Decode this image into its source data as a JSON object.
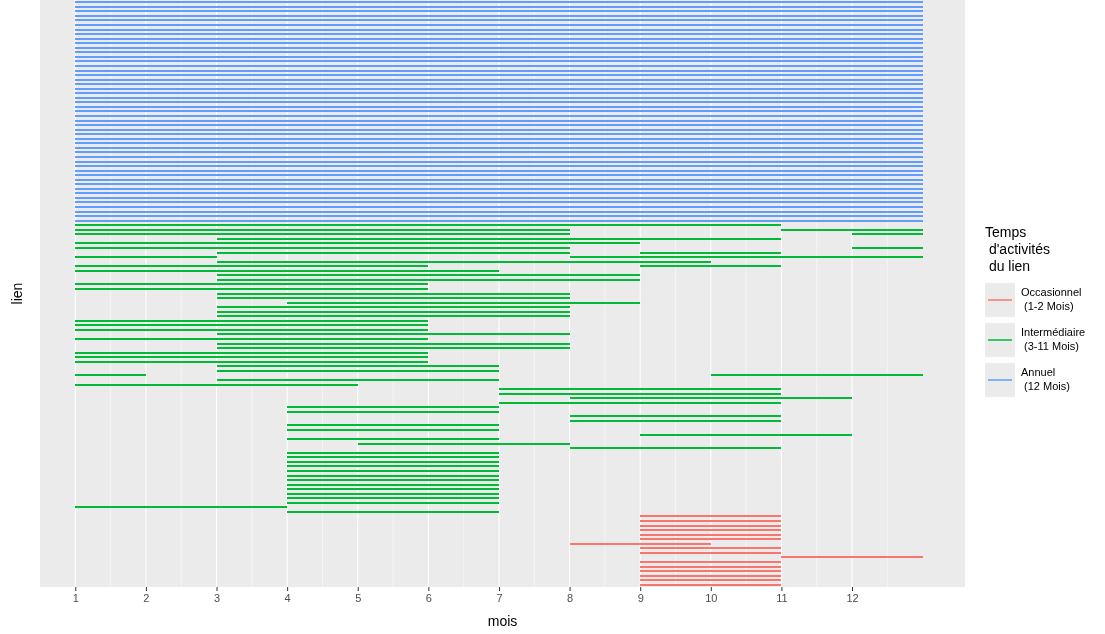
{
  "chart_data": {
    "type": "bar",
    "orientation": "horizontal",
    "xlabel": "mois",
    "ylabel": "lien",
    "legend_title": "Temps\n d'activités\n du lien",
    "legend": "right",
    "grid": "x",
    "tick_labels": "x",
    "xlim": [
      0.5,
      13.6
    ],
    "xticks": [
      1,
      2,
      3,
      4,
      5,
      6,
      7,
      8,
      9,
      10,
      11,
      12
    ],
    "categories": [
      null,
      null,
      null,
      null,
      null,
      null,
      null,
      null,
      null,
      null,
      null,
      null,
      null,
      null,
      null,
      null,
      null,
      null,
      null,
      null,
      null,
      null,
      null,
      null,
      null,
      null,
      null,
      null,
      null,
      null,
      null,
      null,
      null,
      null,
      null,
      null,
      null,
      null,
      null,
      null,
      null,
      null,
      null,
      null,
      null,
      null,
      null,
      null,
      null,
      null,
      null,
      null,
      null,
      null,
      null,
      null,
      null,
      null,
      null,
      null,
      null,
      null,
      null,
      null,
      null,
      null,
      null,
      null,
      null,
      null,
      null,
      null,
      null,
      null,
      null,
      null,
      null,
      null,
      null,
      null,
      null,
      null,
      null,
      null,
      null,
      null,
      null,
      null,
      null,
      null,
      null,
      null,
      null,
      null,
      null,
      null,
      null,
      null,
      null,
      null,
      null,
      null,
      null,
      null,
      null,
      null,
      null,
      null,
      null,
      null,
      null,
      null,
      null,
      null,
      null,
      null,
      null,
      null,
      null,
      null,
      null,
      null,
      null,
      null,
      null,
      null,
      null,
      null,
      null
    ],
    "series": [
      {
        "name": "Occasionnel\n (1-2 Mois)",
        "color": "#f8766d",
        "values": [
          null,
          null,
          null,
          null,
          null,
          null,
          null,
          null,
          null,
          null,
          null,
          null,
          null,
          null,
          null,
          null,
          null,
          null,
          null,
          null,
          null,
          null,
          null,
          null,
          null,
          null,
          null,
          null,
          null,
          null,
          null,
          null,
          null,
          null,
          null,
          null,
          null,
          null,
          null,
          null,
          null,
          null,
          null,
          null,
          null,
          null,
          null,
          null,
          null,
          null,
          null,
          null,
          null,
          null,
          null,
          null,
          null,
          null,
          null,
          null,
          null,
          null,
          null,
          null,
          null,
          null,
          null,
          null,
          null,
          null,
          null,
          null,
          null,
          null,
          null,
          null,
          null,
          null,
          null,
          null,
          null,
          null,
          null,
          null,
          null,
          null,
          null,
          null,
          null,
          null,
          null,
          null,
          null,
          null,
          null,
          null,
          null,
          null,
          null,
          null,
          null,
          null,
          null,
          null,
          null,
          null,
          null,
          null,
          null,
          null,
          null,
          null,
          null,
          2,
          2,
          2,
          2,
          2,
          2,
          2,
          2,
          2,
          2,
          2,
          2,
          2,
          2,
          2,
          2
        ],
        "base": [
          null,
          null,
          null,
          null,
          null,
          null,
          null,
          null,
          null,
          null,
          null,
          null,
          null,
          null,
          null,
          null,
          null,
          null,
          null,
          null,
          null,
          null,
          null,
          null,
          null,
          null,
          null,
          null,
          null,
          null,
          null,
          null,
          null,
          null,
          null,
          null,
          null,
          null,
          null,
          null,
          null,
          null,
          null,
          null,
          null,
          null,
          null,
          null,
          null,
          null,
          null,
          null,
          null,
          null,
          null,
          null,
          null,
          null,
          null,
          null,
          null,
          null,
          null,
          null,
          null,
          null,
          null,
          null,
          null,
          null,
          null,
          null,
          null,
          null,
          null,
          null,
          null,
          null,
          null,
          null,
          null,
          null,
          null,
          null,
          null,
          null,
          null,
          null,
          null,
          null,
          null,
          null,
          null,
          null,
          null,
          null,
          null,
          null,
          null,
          null,
          null,
          null,
          null,
          null,
          null,
          null,
          null,
          null,
          null,
          null,
          null,
          null,
          null,
          9,
          9,
          9,
          9,
          9,
          9,
          8,
          9,
          9,
          11,
          9,
          9,
          9,
          9,
          9,
          9
        ]
      },
      {
        "name": "Intermédiaire\n (3-11 Mois)",
        "color": "#00ba38",
        "values": [
          null,
          null,
          null,
          null,
          null,
          null,
          null,
          null,
          null,
          null,
          null,
          null,
          null,
          null,
          null,
          null,
          null,
          null,
          null,
          null,
          null,
          null,
          null,
          null,
          null,
          null,
          null,
          null,
          null,
          null,
          null,
          null,
          null,
          null,
          null,
          null,
          null,
          null,
          null,
          null,
          null,
          null,
          null,
          null,
          null,
          null,
          null,
          null,
          null,
          10,
          7,
          7,
          8,
          8,
          7,
          5,
          2,
          7,
          5,
          6,
          6,
          6,
          5,
          5,
          5,
          5,
          5,
          5,
          5,
          5,
          5,
          5,
          5,
          5,
          5,
          5,
          5,
          5,
          5,
          5,
          4,
          4,
          1,
          4,
          4,
          4,
          4,
          4,
          4,
          3,
          3,
          3,
          3,
          3,
          3,
          3,
          3,
          3,
          3,
          3,
          3,
          3,
          3,
          3,
          3,
          3,
          3,
          3,
          3,
          3,
          3,
          3,
          3,
          null,
          null,
          null,
          null,
          null,
          null,
          null,
          null,
          null,
          null,
          null,
          null,
          null,
          null,
          null,
          null
        ],
        "base": [
          null,
          null,
          null,
          null,
          null,
          null,
          null,
          null,
          null,
          null,
          null,
          null,
          null,
          null,
          null,
          null,
          null,
          null,
          null,
          null,
          null,
          null,
          null,
          null,
          null,
          null,
          null,
          null,
          null,
          null,
          null,
          null,
          null,
          null,
          null,
          null,
          null,
          null,
          null,
          null,
          null,
          null,
          null,
          null,
          null,
          null,
          null,
          null,
          null,
          1,
          1,
          1,
          3,
          1,
          1,
          3,
          1,
          3,
          1,
          1,
          3,
          3,
          1,
          1,
          3,
          3,
          4,
          3,
          3,
          3,
          1,
          1,
          1,
          3,
          1,
          3,
          3,
          1,
          1,
          1,
          3,
          3,
          1,
          3,
          1,
          7,
          7,
          8,
          7,
          4,
          4,
          8,
          8,
          4,
          4,
          9,
          4,
          5,
          8,
          4,
          4,
          4,
          4,
          4,
          4,
          4,
          4,
          4,
          4,
          4,
          4,
          1,
          4,
          null,
          null,
          null,
          null,
          null,
          null,
          null,
          null,
          null,
          null,
          null,
          null,
          null,
          null,
          null,
          null
        ]
      },
      {
        "color": "#00ba38",
        "values": [
          null,
          null,
          null,
          null,
          null,
          null,
          null,
          null,
          null,
          null,
          null,
          null,
          null,
          null,
          null,
          null,
          null,
          null,
          null,
          null,
          null,
          null,
          null,
          null,
          null,
          null,
          null,
          null,
          null,
          null,
          null,
          null,
          null,
          null,
          null,
          null,
          null,
          null,
          null,
          null,
          null,
          null,
          null,
          null,
          null,
          null,
          null,
          null,
          null,
          null,
          2,
          1,
          null,
          null,
          1,
          2,
          5,
          null,
          2,
          null,
          null,
          null,
          null,
          null,
          null,
          null,
          null,
          null,
          null,
          null,
          null,
          null,
          null,
          null,
          null,
          null,
          null,
          null,
          null,
          null,
          null,
          null,
          3,
          null,
          null,
          null,
          null,
          null,
          null,
          null,
          null,
          null,
          null,
          null,
          null,
          null,
          null,
          null,
          null,
          null,
          null,
          null,
          null,
          null,
          null,
          null,
          null,
          null,
          null,
          null,
          null,
          null,
          null,
          null,
          null,
          null,
          null,
          null,
          null,
          null,
          null,
          null,
          null,
          null,
          null,
          null,
          null,
          null,
          null
        ],
        "base": [
          null,
          null,
          null,
          null,
          null,
          null,
          null,
          null,
          null,
          null,
          null,
          null,
          null,
          null,
          null,
          null,
          null,
          null,
          null,
          null,
          null,
          null,
          null,
          null,
          null,
          null,
          null,
          null,
          null,
          null,
          null,
          null,
          null,
          null,
          null,
          null,
          null,
          null,
          null,
          null,
          null,
          null,
          null,
          null,
          null,
          null,
          null,
          null,
          null,
          null,
          11,
          12,
          null,
          null,
          12,
          9,
          8,
          null,
          9,
          null,
          null,
          null,
          null,
          null,
          null,
          null,
          null,
          null,
          null,
          null,
          null,
          null,
          null,
          null,
          null,
          null,
          null,
          null,
          null,
          null,
          null,
          null,
          10,
          null,
          null,
          null,
          null,
          null,
          null,
          null,
          null,
          null,
          null,
          null,
          null,
          null,
          null,
          null,
          null,
          null,
          null,
          null,
          null,
          null,
          null,
          null,
          null,
          null,
          null,
          null,
          null,
          null,
          null,
          null,
          null,
          null,
          null,
          null,
          null,
          null,
          null,
          null,
          null,
          null,
          null,
          null,
          null,
          null,
          null
        ]
      },
      {
        "name": "Annuel\n (12 Mois)",
        "color": "#619cff",
        "values": [
          12,
          12,
          12,
          12,
          12,
          12,
          12,
          12,
          12,
          12,
          12,
          12,
          12,
          12,
          12,
          12,
          12,
          12,
          12,
          12,
          12,
          12,
          12,
          12,
          12,
          12,
          12,
          12,
          12,
          12,
          12,
          12,
          12,
          12,
          12,
          12,
          12,
          12,
          12,
          12,
          12,
          12,
          12,
          12,
          12,
          12,
          12,
          12,
          12,
          null,
          null,
          null,
          null,
          null,
          null,
          null,
          null,
          null,
          null,
          null,
          null,
          null,
          null,
          null,
          null,
          null,
          null,
          null,
          null,
          null,
          null,
          null,
          null,
          null,
          null,
          null,
          null,
          null,
          null,
          null,
          null,
          null,
          null,
          null,
          null,
          null,
          null,
          null,
          null,
          null,
          null,
          null,
          null,
          null,
          null,
          null,
          null,
          null,
          null,
          null,
          null,
          null,
          null,
          null,
          null,
          null,
          null,
          null,
          null,
          null,
          null,
          null,
          null,
          null,
          null,
          null,
          null,
          null,
          null,
          null,
          null,
          null,
          null,
          null,
          null,
          null,
          null,
          null,
          null
        ],
        "base": [
          1,
          1,
          1,
          1,
          1,
          1,
          1,
          1,
          1,
          1,
          1,
          1,
          1,
          1,
          1,
          1,
          1,
          1,
          1,
          1,
          1,
          1,
          1,
          1,
          1,
          1,
          1,
          1,
          1,
          1,
          1,
          1,
          1,
          1,
          1,
          1,
          1,
          1,
          1,
          1,
          1,
          1,
          1,
          1,
          1,
          1,
          1,
          1,
          1,
          null,
          null,
          null,
          null,
          null,
          null,
          null,
          null,
          null,
          null,
          null,
          null,
          null,
          null,
          null,
          null,
          null,
          null,
          null,
          null,
          null,
          null,
          null,
          null,
          null,
          null,
          null,
          null,
          null,
          null,
          null,
          null,
          null,
          null,
          null,
          null,
          null,
          null,
          null,
          null,
          null,
          null,
          null,
          null,
          null,
          null,
          null,
          null,
          null,
          null,
          null,
          null,
          null,
          null,
          null,
          null,
          null,
          null,
          null,
          null,
          null,
          null,
          null,
          null,
          null,
          null,
          null,
          null,
          null,
          null,
          null,
          null,
          null,
          null,
          null,
          null,
          null,
          null,
          null,
          null
        ]
      }
    ]
  }
}
